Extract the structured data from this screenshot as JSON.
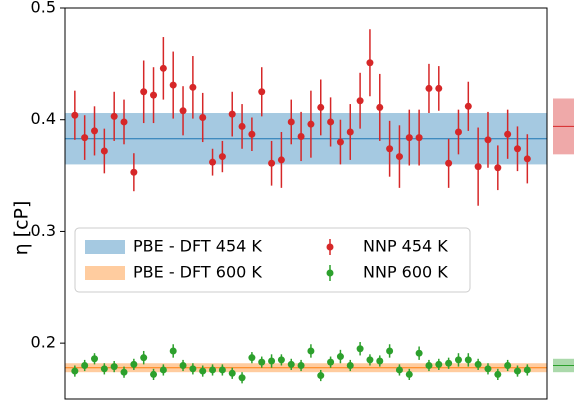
{
  "chart_data": {
    "type": "errorbar",
    "ylabel": "η [cP]",
    "ylim": [
      0.15,
      0.5
    ],
    "yticks": [
      0.2,
      0.3,
      0.4,
      0.5
    ],
    "xlim": [
      -1,
      48
    ],
    "x": [
      0,
      1,
      2,
      3,
      4,
      5,
      6,
      7,
      8,
      9,
      10,
      11,
      12,
      13,
      14,
      15,
      16,
      17,
      18,
      19,
      20,
      21,
      22,
      23,
      24,
      25,
      26,
      27,
      28,
      29,
      30,
      31,
      32,
      33,
      34,
      35,
      36,
      37,
      38,
      39,
      40,
      41,
      42,
      43,
      44,
      45,
      46
    ],
    "bands": [
      {
        "name": "PBE - DFT 454 K",
        "color": "#1f77b4",
        "low": 0.36,
        "high": 0.406,
        "center": 0.383
      },
      {
        "name": "PBE - DFT 600 K",
        "color": "#ff7f0e",
        "low": 0.174,
        "high": 0.182,
        "center": 0.178
      }
    ],
    "series": [
      {
        "name": "NNP 454 K",
        "color": "#d62728",
        "mean": 0.394,
        "mean_error": 0.025,
        "values": [
          0.404,
          0.384,
          0.39,
          0.372,
          0.403,
          0.398,
          0.353,
          0.425,
          0.422,
          0.446,
          0.431,
          0.408,
          0.429,
          0.402,
          0.362,
          0.367,
          0.405,
          0.394,
          0.387,
          0.425,
          0.361,
          0.364,
          0.398,
          0.385,
          0.396,
          0.411,
          0.398,
          0.38,
          0.389,
          0.417,
          0.451,
          0.411,
          0.374,
          0.367,
          0.384,
          0.384,
          0.428,
          0.428,
          0.361,
          0.389,
          0.412,
          0.358,
          0.382,
          0.357,
          0.387,
          0.374,
          0.365
        ],
        "errors": [
          0.022,
          0.02,
          0.022,
          0.02,
          0.022,
          0.02,
          0.017,
          0.028,
          0.025,
          0.028,
          0.03,
          0.022,
          0.028,
          0.022,
          0.012,
          0.014,
          0.02,
          0.02,
          0.015,
          0.022,
          0.02,
          0.025,
          0.02,
          0.022,
          0.03,
          0.025,
          0.022,
          0.02,
          0.025,
          0.025,
          0.03,
          0.03,
          0.025,
          0.028,
          0.025,
          0.025,
          0.022,
          0.02,
          0.022,
          0.02,
          0.022,
          0.035,
          0.025,
          0.02,
          0.022,
          0.02,
          0.022
        ]
      },
      {
        "name": "NNP 600 K",
        "color": "#2ca02c",
        "mean": 0.18,
        "mean_error": 0.006,
        "values": [
          0.175,
          0.18,
          0.186,
          0.177,
          0.179,
          0.174,
          0.181,
          0.187,
          0.172,
          0.176,
          0.193,
          0.18,
          0.177,
          0.175,
          0.176,
          0.176,
          0.173,
          0.169,
          0.187,
          0.183,
          0.184,
          0.185,
          0.181,
          0.18,
          0.193,
          0.171,
          0.183,
          0.188,
          0.18,
          0.195,
          0.185,
          0.184,
          0.193,
          0.176,
          0.172,
          0.191,
          0.18,
          0.181,
          0.182,
          0.185,
          0.185,
          0.181,
          0.177,
          0.172,
          0.18,
          0.175,
          0.176
        ],
        "errors": [
          0.005,
          0.005,
          0.005,
          0.005,
          0.005,
          0.005,
          0.005,
          0.006,
          0.005,
          0.005,
          0.006,
          0.005,
          0.005,
          0.005,
          0.005,
          0.005,
          0.005,
          0.005,
          0.005,
          0.005,
          0.006,
          0.005,
          0.005,
          0.005,
          0.006,
          0.005,
          0.005,
          0.006,
          0.005,
          0.006,
          0.005,
          0.005,
          0.006,
          0.005,
          0.005,
          0.006,
          0.005,
          0.005,
          0.005,
          0.006,
          0.006,
          0.005,
          0.005,
          0.005,
          0.005,
          0.005,
          0.005
        ]
      }
    ]
  }
}
